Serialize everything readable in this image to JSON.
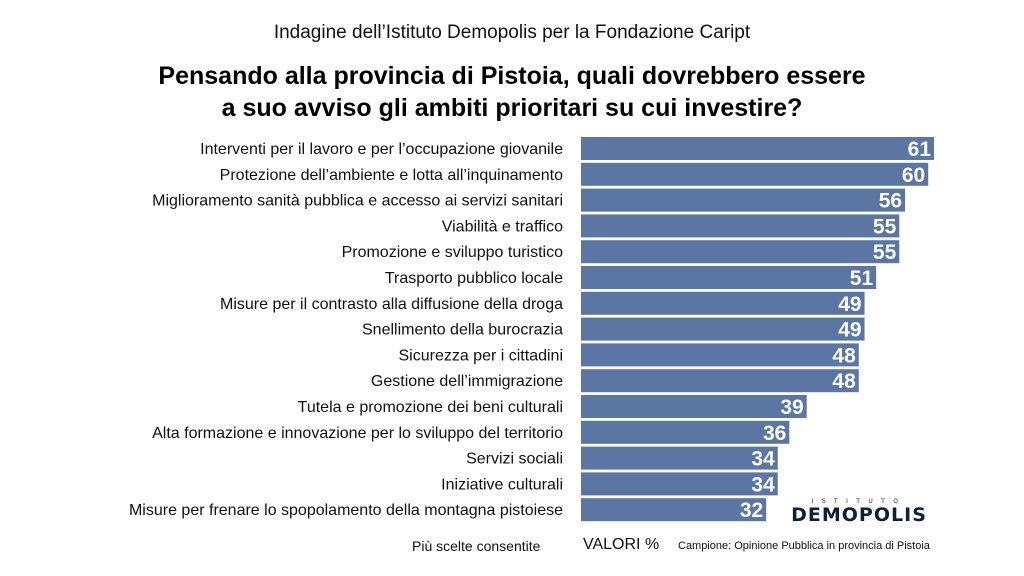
{
  "header": {
    "supertitle": "Indagine dell’Istituto Demopolis per la Fondazione Caript",
    "title_line1": "Pensando alla provincia di Pistoia, quali dovrebbero essere",
    "title_line2": "a suo avviso gli ambiti prioritari su cui investire?"
  },
  "chart_data": {
    "type": "bar",
    "orientation": "horizontal",
    "bar_color": "#5b76a3",
    "value_label_color": "#ffffff",
    "categories": [
      "Interventi per il lavoro e per l’occupazione giovanile",
      "Protezione dell’ambiente e lotta all’inquinamento",
      "Miglioramento sanità pubblica e accesso ai servizi sanitari",
      "Viabilità e traffico",
      "Promozione e sviluppo turistico",
      "Trasporto pubblico locale",
      "Misure per il contrasto alla diffusione della droga",
      "Snellimento della burocrazia",
      "Sicurezza per i cittadini",
      "Gestione dell’immigrazione",
      "Tutela e promozione dei beni culturali",
      "Alta formazione e innovazione per lo sviluppo del territorio",
      "Servizi sociali",
      "Iniziative culturali",
      "Misure per frenare lo spopolamento della montagna pistoiese"
    ],
    "values": [
      61,
      60,
      56,
      55,
      55,
      51,
      49,
      49,
      48,
      48,
      39,
      36,
      34,
      34,
      32
    ],
    "xlim": [
      0,
      61
    ]
  },
  "footer": {
    "note": "Più scelte consentite",
    "units": "VALORI %",
    "sample": "Campione: Opinione Pubblica in provincia di Pistoia"
  },
  "logo": {
    "top_text": "ISTITUTO",
    "name": "DEMOPOLIS"
  }
}
